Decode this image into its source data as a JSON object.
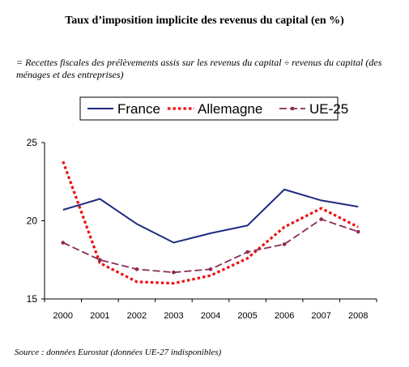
{
  "title": "Taux d’imposition implicite des revenus du capital (en %)",
  "subtitle": "= Recettes fiscales des prélèvements assis sur les revenus du capital ÷ revenus du capital (des ménages et des entreprises)",
  "source": "Source : données Eurostat (données UE-27 indisponibles)",
  "chart_data": {
    "type": "line",
    "x": [
      "2000",
      "2001",
      "2002",
      "2003",
      "2004",
      "2005",
      "2006",
      "2007",
      "2008"
    ],
    "ylim": [
      15,
      25
    ],
    "yticks": [
      15,
      20,
      25
    ],
    "grid": false,
    "legend_position": "top",
    "series": [
      {
        "name": "France",
        "color": "#1f2a80",
        "style": "solid",
        "values": [
          20.7,
          21.4,
          19.8,
          18.6,
          19.2,
          19.7,
          22.0,
          21.3,
          20.9
        ]
      },
      {
        "name": "Allemagne",
        "color": "#ee1111",
        "style": "dotted",
        "values": [
          23.8,
          17.3,
          16.1,
          16.0,
          16.5,
          17.6,
          19.6,
          20.8,
          19.6
        ]
      },
      {
        "name": "UE-25",
        "color": "#8a2b52",
        "style": "dashed-marker",
        "values": [
          18.6,
          17.5,
          16.9,
          16.7,
          16.9,
          18.0,
          18.5,
          20.1,
          19.3
        ]
      }
    ]
  }
}
